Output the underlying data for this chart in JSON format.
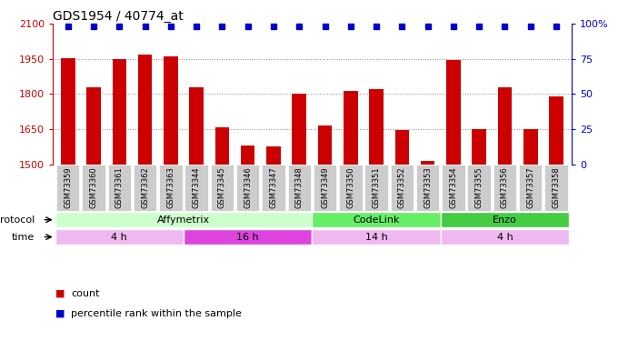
{
  "title": "GDS1954 / 40774_at",
  "samples": [
    "GSM73359",
    "GSM73360",
    "GSM73361",
    "GSM73362",
    "GSM73363",
    "GSM73344",
    "GSM73345",
    "GSM73346",
    "GSM73347",
    "GSM73348",
    "GSM73349",
    "GSM73350",
    "GSM73351",
    "GSM73352",
    "GSM73353",
    "GSM73354",
    "GSM73355",
    "GSM73356",
    "GSM73357",
    "GSM73358"
  ],
  "counts": [
    1955,
    1830,
    1950,
    1970,
    1960,
    1830,
    1660,
    1580,
    1575,
    1800,
    1665,
    1815,
    1820,
    1645,
    1515,
    1945,
    1650,
    1830,
    1650,
    1790
  ],
  "percentile": [
    98,
    98,
    98,
    98,
    98,
    98,
    98,
    98,
    98,
    98,
    98,
    98,
    98,
    98,
    98,
    98,
    98,
    98,
    98,
    98
  ],
  "ylim_left": [
    1500,
    2100
  ],
  "yticks_left": [
    1500,
    1650,
    1800,
    1950,
    2100
  ],
  "ylim_right": [
    0,
    100
  ],
  "yticks_right": [
    0,
    25,
    50,
    75,
    100
  ],
  "bar_color": "#cc0000",
  "dot_color": "#0000cc",
  "protocol_regions": [
    {
      "label": "Affymetrix",
      "start": 0,
      "end": 10,
      "color": "#ccffcc"
    },
    {
      "label": "CodeLink",
      "start": 10,
      "end": 15,
      "color": "#66ee66"
    },
    {
      "label": "Enzo",
      "start": 15,
      "end": 20,
      "color": "#44cc44"
    }
  ],
  "time_regions": [
    {
      "label": "4 h",
      "start": 0,
      "end": 5,
      "color": "#f0b8f0"
    },
    {
      "label": "16 h",
      "start": 5,
      "end": 10,
      "color": "#dd44dd"
    },
    {
      "label": "14 h",
      "start": 10,
      "end": 15,
      "color": "#f0b8f0"
    },
    {
      "label": "4 h",
      "start": 15,
      "end": 20,
      "color": "#f0b8f0"
    }
  ],
  "legend_items": [
    {
      "color": "#cc0000",
      "label": "count"
    },
    {
      "color": "#0000cc",
      "label": "percentile rank within the sample"
    }
  ],
  "tick_label_color": "#666666",
  "grid_color": "#888888",
  "xlabel_bg_color": "#cccccc",
  "left_label_color": "#cc0000",
  "right_label_color": "#0000cc"
}
